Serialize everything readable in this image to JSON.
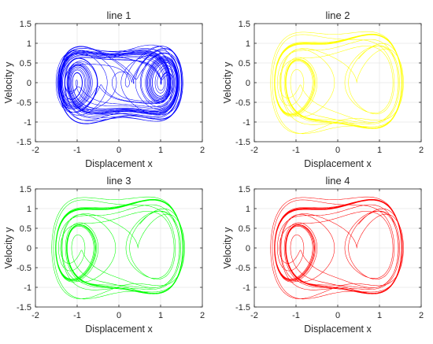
{
  "chart_data": [
    {
      "type": "line",
      "title": "line 1",
      "xlabel": "Displacement x",
      "ylabel": "Velocity y",
      "xlim": [
        -2,
        2
      ],
      "ylim": [
        -1.5,
        1.5
      ],
      "xticks": [
        "-2",
        "-1",
        "0",
        "1",
        "2"
      ],
      "yticks": [
        "1.5",
        "1",
        "0.5",
        "0",
        "-0.5",
        "-1",
        "-1.5"
      ],
      "grid": true,
      "color": "#0000ff",
      "behavior": "chaotic",
      "start": [
        0.5,
        0.6
      ],
      "series": [
        {
          "x": [
            0.5
          ],
          "y": [
            0.6
          ]
        }
      ]
    },
    {
      "type": "line",
      "title": "line 2",
      "xlabel": "Displacement x",
      "ylabel": "Velocity y",
      "xlim": [
        -2,
        2
      ],
      "ylim": [
        -1.5,
        1.5
      ],
      "xticks": [
        "-2",
        "-1",
        "0",
        "1",
        "2"
      ],
      "yticks": [
        "1.5",
        "1",
        "0.5",
        "0",
        "-0.5",
        "-1",
        "-1.5"
      ],
      "grid": true,
      "color": "#ffff00",
      "behavior": "periodic",
      "start": [
        0.5,
        0.6
      ],
      "series": [
        {
          "x": [
            0.5
          ],
          "y": [
            0.6
          ]
        }
      ]
    },
    {
      "type": "line",
      "title": "line 3",
      "xlabel": "Displacement x",
      "ylabel": "Velocity y",
      "xlim": [
        -2,
        2
      ],
      "ylim": [
        -1.5,
        1.5
      ],
      "xticks": [
        "-2",
        "-1",
        "0",
        "1",
        "2"
      ],
      "yticks": [
        "1.5",
        "1",
        "0.5",
        "0",
        "-0.5",
        "-1",
        "-1.5"
      ],
      "grid": true,
      "color": "#00ff00",
      "behavior": "periodic",
      "start": [
        0.5,
        0.6
      ],
      "series": [
        {
          "x": [
            0.5
          ],
          "y": [
            0.6
          ]
        }
      ]
    },
    {
      "type": "line",
      "title": "line 4",
      "xlabel": "Displacement x",
      "ylabel": "Velocity y",
      "xlim": [
        -2,
        2
      ],
      "ylim": [
        -1.5,
        1.5
      ],
      "xticks": [
        "-2",
        "-1",
        "0",
        "1",
        "2"
      ],
      "yticks": [
        "1.5",
        "1",
        "0.5",
        "0",
        "-0.5",
        "-1",
        "-1.5"
      ],
      "grid": true,
      "color": "#ff0000",
      "behavior": "periodic",
      "start": [
        0.5,
        0.6
      ],
      "series": [
        {
          "x": [
            0.5
          ],
          "y": [
            0.6
          ]
        }
      ]
    }
  ]
}
